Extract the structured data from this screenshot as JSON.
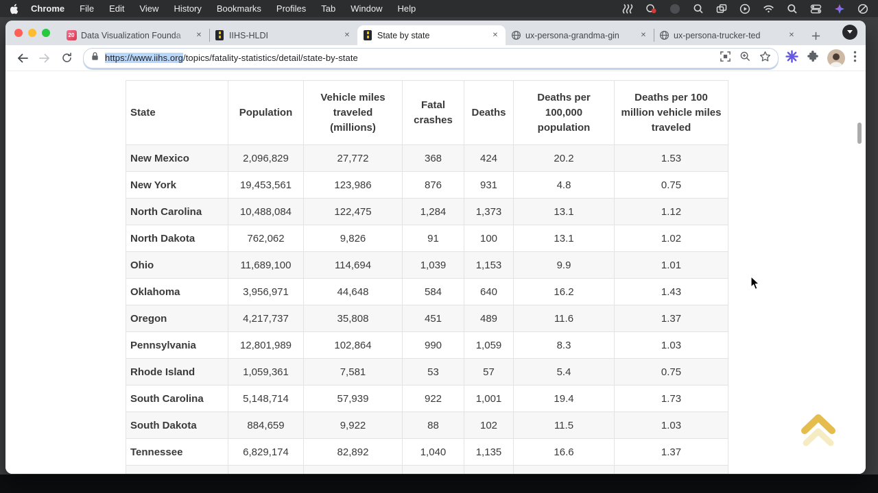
{
  "menu_bar": {
    "apple_menu_icon": "apple-logo",
    "items": [
      "Chrome",
      "File",
      "Edit",
      "View",
      "History",
      "Bookmarks",
      "Profiles",
      "Tab",
      "Window",
      "Help"
    ],
    "status_icons": [
      "squiggle-lines-icon",
      "screen-recording-icon",
      "dimmed-app-icon",
      "magnifier-app-icon",
      "windows-stack-icon",
      "play-circle-icon",
      "wifi-icon",
      "spotlight-search-icon",
      "control-center-icon",
      "sparkle-app-icon",
      "focus-dnd-icon"
    ]
  },
  "browser": {
    "window_controls": [
      "close",
      "minimize",
      "zoom"
    ],
    "tabs": [
      {
        "label": "Data Visualization Founda",
        "favicon": "calendar-20",
        "active": false
      },
      {
        "label": "IIHS-HLDI",
        "favicon": "iihs-road",
        "active": false
      },
      {
        "label": "State by state",
        "favicon": "iihs-road",
        "active": true
      },
      {
        "label": "ux-persona-grandma-gin",
        "favicon": "globe",
        "active": false
      },
      {
        "label": "ux-persona-trucker-ted",
        "favicon": "globe",
        "active": false
      }
    ],
    "omnibox": {
      "url_selected": "https://www.iihs.org",
      "url_rest": "/topics/fatality-statistics/detail/state-by-state"
    }
  },
  "page": {
    "table": {
      "columns": [
        "State",
        "Population",
        "Vehicle miles traveled (millions)",
        "Fatal crashes",
        "Deaths",
        "Deaths per 100,000 population",
        "Deaths per 100 million vehicle miles traveled"
      ],
      "rows": [
        [
          "New Mexico",
          "2,096,829",
          "27,772",
          "368",
          "424",
          "20.2",
          "1.53"
        ],
        [
          "New York",
          "19,453,561",
          "123,986",
          "876",
          "931",
          "4.8",
          "0.75"
        ],
        [
          "North Carolina",
          "10,488,084",
          "122,475",
          "1,284",
          "1,373",
          "13.1",
          "1.12"
        ],
        [
          "North Dakota",
          "762,062",
          "9,826",
          "91",
          "100",
          "13.1",
          "1.02"
        ],
        [
          "Ohio",
          "11,689,100",
          "114,694",
          "1,039",
          "1,153",
          "9.9",
          "1.01"
        ],
        [
          "Oklahoma",
          "3,956,971",
          "44,648",
          "584",
          "640",
          "16.2",
          "1.43"
        ],
        [
          "Oregon",
          "4,217,737",
          "35,808",
          "451",
          "489",
          "11.6",
          "1.37"
        ],
        [
          "Pennsylvania",
          "12,801,989",
          "102,864",
          "990",
          "1,059",
          "8.3",
          "1.03"
        ],
        [
          "Rhode Island",
          "1,059,361",
          "7,581",
          "53",
          "57",
          "5.4",
          "0.75"
        ],
        [
          "South Carolina",
          "5,148,714",
          "57,939",
          "922",
          "1,001",
          "19.4",
          "1.73"
        ],
        [
          "South Dakota",
          "884,659",
          "9,922",
          "88",
          "102",
          "11.5",
          "1.03"
        ],
        [
          "Tennessee",
          "6,829,174",
          "82,892",
          "1,040",
          "1,135",
          "16.6",
          "1.37"
        ]
      ]
    },
    "scroll_to_top_icon": "double-chevron-up",
    "colors": {
      "accent_gold": "#e5bd4e",
      "accent_gold_faded": "#f3e5b0",
      "selection_blue": "#b9d7fb",
      "row_stripe": "#f7f7f7"
    }
  }
}
